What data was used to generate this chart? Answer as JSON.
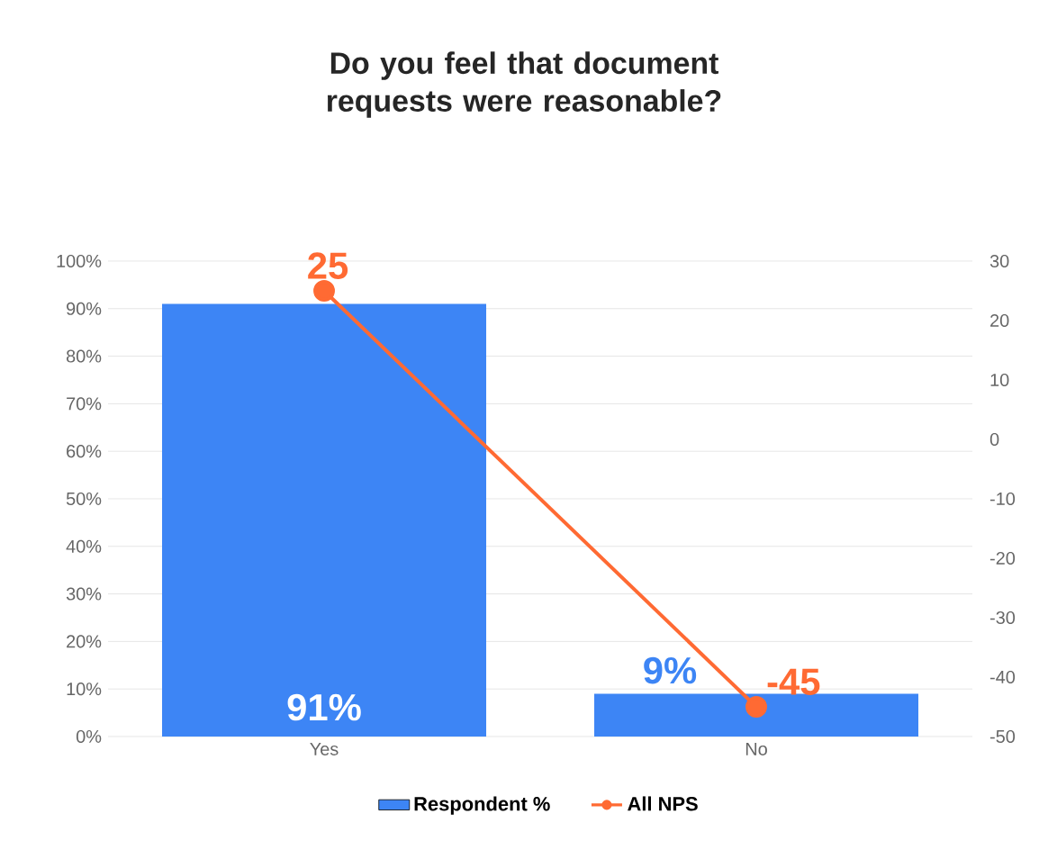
{
  "chart_data": {
    "type": "bar",
    "title": "Do you feel that document requests were reasonable?",
    "categories": [
      "Yes",
      "No"
    ],
    "series": [
      {
        "name": "Respondent %",
        "color": "#3d85f5",
        "values": [
          91,
          9
        ],
        "value_labels": [
          "91%",
          "9%"
        ]
      },
      {
        "name": "All NPS",
        "type": "line",
        "axis": "y2",
        "color": "#ff6a33",
        "values": [
          25,
          -45
        ],
        "value_labels": [
          "25",
          "-45"
        ],
        "marker": "circle"
      }
    ],
    "ylim": [
      0,
      100
    ],
    "yticks": [
      {
        "value": 0,
        "label": "0%"
      },
      {
        "value": 10,
        "label": "10%"
      },
      {
        "value": 20,
        "label": "20%"
      },
      {
        "value": 30,
        "label": "30%"
      },
      {
        "value": 40,
        "label": "40%"
      },
      {
        "value": 50,
        "label": "50%"
      },
      {
        "value": 60,
        "label": "60%"
      },
      {
        "value": 70,
        "label": "70%"
      },
      {
        "value": 80,
        "label": "80%"
      },
      {
        "value": 90,
        "label": "90%"
      },
      {
        "value": 100,
        "label": "100%"
      }
    ],
    "y2lim": [
      -50,
      30
    ],
    "y2ticks": [
      -50,
      -40,
      -30,
      -20,
      -10,
      0,
      10,
      20,
      30
    ],
    "grid": "y",
    "legend": "bottom"
  }
}
